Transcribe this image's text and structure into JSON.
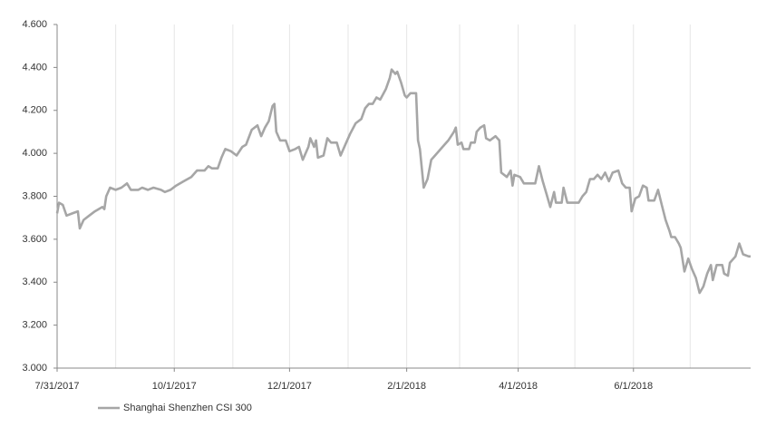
{
  "chart_data": {
    "type": "line",
    "series": [
      {
        "name": "Shanghai Shenzhen CSI 300",
        "color": "#a6a6a6",
        "x": [
          "2017-07-31",
          "2017-08-01",
          "2017-08-03",
          "2017-08-05",
          "2017-08-08",
          "2017-08-11",
          "2017-08-12",
          "2017-08-14",
          "2017-08-17",
          "2017-08-20",
          "2017-08-24",
          "2017-08-25",
          "2017-08-26",
          "2017-08-28",
          "2017-08-31",
          "2017-09-03",
          "2017-09-06",
          "2017-09-08",
          "2017-09-12",
          "2017-09-14",
          "2017-09-17",
          "2017-09-20",
          "2017-09-24",
          "2017-09-26",
          "2017-09-29",
          "2017-10-02",
          "2017-10-06",
          "2017-10-10",
          "2017-10-13",
          "2017-10-17",
          "2017-10-19",
          "2017-10-21",
          "2017-10-24",
          "2017-10-26",
          "2017-10-28",
          "2017-10-31",
          "2017-11-03",
          "2017-11-06",
          "2017-11-08",
          "2017-11-11",
          "2017-11-14",
          "2017-11-16",
          "2017-11-18",
          "2017-11-20",
          "2017-11-22",
          "2017-11-23",
          "2017-11-24",
          "2017-11-26",
          "2017-11-29",
          "2017-12-01",
          "2017-12-04",
          "2017-12-06",
          "2017-12-08",
          "2017-12-11",
          "2017-12-12",
          "2017-12-14",
          "2017-12-15",
          "2017-12-16",
          "2017-12-19",
          "2017-12-21",
          "2017-12-23",
          "2017-12-26",
          "2017-12-28",
          "2017-12-31",
          "2018-01-02",
          "2018-01-05",
          "2018-01-08",
          "2018-01-10",
          "2018-01-12",
          "2018-01-14",
          "2018-01-16",
          "2018-01-18",
          "2018-01-21",
          "2018-01-23",
          "2018-01-24",
          "2018-01-26",
          "2018-01-27",
          "2018-01-29",
          "2018-01-31",
          "2018-02-01",
          "2018-02-03",
          "2018-02-06",
          "2018-02-07",
          "2018-02-08",
          "2018-02-10",
          "2018-02-12",
          "2018-02-14",
          "2018-02-17",
          "2018-02-20",
          "2018-02-23",
          "2018-02-26",
          "2018-02-27",
          "2018-02-28",
          "2018-03-02",
          "2018-03-03",
          "2018-03-06",
          "2018-03-07",
          "2018-03-09",
          "2018-03-10",
          "2018-03-12",
          "2018-03-14",
          "2018-03-15",
          "2018-03-17",
          "2018-03-20",
          "2018-03-22",
          "2018-03-23",
          "2018-03-26",
          "2018-03-28",
          "2018-03-29",
          "2018-03-30",
          "2018-04-02",
          "2018-04-04",
          "2018-04-07",
          "2018-04-10",
          "2018-04-12",
          "2018-04-14",
          "2018-04-16",
          "2018-04-18",
          "2018-04-20",
          "2018-04-21",
          "2018-04-24",
          "2018-04-25",
          "2018-04-27",
          "2018-04-30",
          "2018-05-03",
          "2018-05-05",
          "2018-05-07",
          "2018-05-09",
          "2018-05-11",
          "2018-05-13",
          "2018-05-15",
          "2018-05-17",
          "2018-05-19",
          "2018-05-21",
          "2018-05-24",
          "2018-05-26",
          "2018-05-28",
          "2018-05-30",
          "2018-05-31",
          "2018-06-02",
          "2018-06-04",
          "2018-06-06",
          "2018-06-08",
          "2018-06-09",
          "2018-06-12",
          "2018-06-14",
          "2018-06-16",
          "2018-06-18",
          "2018-06-20",
          "2018-06-21",
          "2018-06-23",
          "2018-06-25",
          "2018-06-26",
          "2018-06-28",
          "2018-06-30",
          "2018-07-02",
          "2018-07-04",
          "2018-07-06",
          "2018-07-08",
          "2018-07-10",
          "2018-07-12",
          "2018-07-13",
          "2018-07-15",
          "2018-07-18",
          "2018-07-19",
          "2018-07-21",
          "2018-07-22",
          "2018-07-25",
          "2018-07-27",
          "2018-07-29",
          "2018-08-01",
          "2018-08-02"
        ],
        "values": [
          3.72,
          3.77,
          3.76,
          3.71,
          3.72,
          3.73,
          3.65,
          3.69,
          3.71,
          3.73,
          3.75,
          3.74,
          3.8,
          3.84,
          3.83,
          3.84,
          3.86,
          3.83,
          3.83,
          3.84,
          3.83,
          3.84,
          3.83,
          3.82,
          3.83,
          3.85,
          3.87,
          3.89,
          3.92,
          3.92,
          3.94,
          3.93,
          3.93,
          3.98,
          4.02,
          4.01,
          3.99,
          4.03,
          4.04,
          4.11,
          4.13,
          4.08,
          4.12,
          4.15,
          4.22,
          4.23,
          4.1,
          4.06,
          4.06,
          4.01,
          4.02,
          4.03,
          3.97,
          4.03,
          4.07,
          4.03,
          4.06,
          3.98,
          3.99,
          4.07,
          4.05,
          4.05,
          3.99,
          4.05,
          4.09,
          4.14,
          4.16,
          4.21,
          4.23,
          4.23,
          4.26,
          4.25,
          4.3,
          4.35,
          4.39,
          4.37,
          4.38,
          4.33,
          4.27,
          4.26,
          4.28,
          4.28,
          4.06,
          4.02,
          3.84,
          3.88,
          3.97,
          4.0,
          4.03,
          4.06,
          4.1,
          4.12,
          4.04,
          4.05,
          4.02,
          4.02,
          4.05,
          4.05,
          4.1,
          4.12,
          4.13,
          4.07,
          4.06,
          4.08,
          4.06,
          3.91,
          3.89,
          3.92,
          3.85,
          3.9,
          3.89,
          3.86,
          3.86,
          3.86,
          3.94,
          3.87,
          3.81,
          3.75,
          3.82,
          3.77,
          3.77,
          3.84,
          3.77,
          3.77,
          3.77,
          3.8,
          3.82,
          3.88,
          3.88,
          3.9,
          3.88,
          3.91,
          3.87,
          3.91,
          3.92,
          3.86,
          3.84,
          3.84,
          3.73,
          3.79,
          3.8,
          3.85,
          3.84,
          3.78,
          3.78,
          3.83,
          3.76,
          3.69,
          3.64,
          3.61,
          3.61,
          3.58,
          3.56,
          3.45,
          3.51,
          3.46,
          3.42,
          3.35,
          3.38,
          3.44,
          3.48,
          3.41,
          3.48,
          3.48,
          3.44,
          3.43,
          3.49,
          3.52,
          3.58,
          3.53,
          3.52,
          3.52
        ]
      }
    ],
    "xlim": [
      "2017-07-31",
      "2018-08-02"
    ],
    "xticks": [
      {
        "value": "2017-07-31",
        "label": "7/31/2017"
      },
      {
        "value": "2017-10-01",
        "label": "10/1/2017"
      },
      {
        "value": "2017-12-01",
        "label": "12/1/2017"
      },
      {
        "value": "2018-02-01",
        "label": "2/1/2018"
      },
      {
        "value": "2018-04-01",
        "label": "4/1/2018"
      },
      {
        "value": "2018-06-01",
        "label": "6/1/2018"
      }
    ],
    "xgrid": [
      "2017-08-31",
      "2017-11-01",
      "2018-01-01",
      "2018-03-01",
      "2018-05-01",
      "2018-07-01"
    ],
    "ylim": [
      3,
      4.6
    ],
    "yticks": [
      {
        "value": 3,
        "label": "3.000"
      },
      {
        "value": 3.2,
        "label": "3.200"
      },
      {
        "value": 3.4,
        "label": "3.400"
      },
      {
        "value": 3.6,
        "label": "3.600"
      },
      {
        "value": 3.8,
        "label": "3.800"
      },
      {
        "value": 4,
        "label": "4.000"
      },
      {
        "value": 4.2,
        "label": "4.200"
      },
      {
        "value": 4.4,
        "label": "4.400"
      },
      {
        "value": 4.6,
        "label": "4.600"
      }
    ],
    "legend": "bottom-left"
  }
}
